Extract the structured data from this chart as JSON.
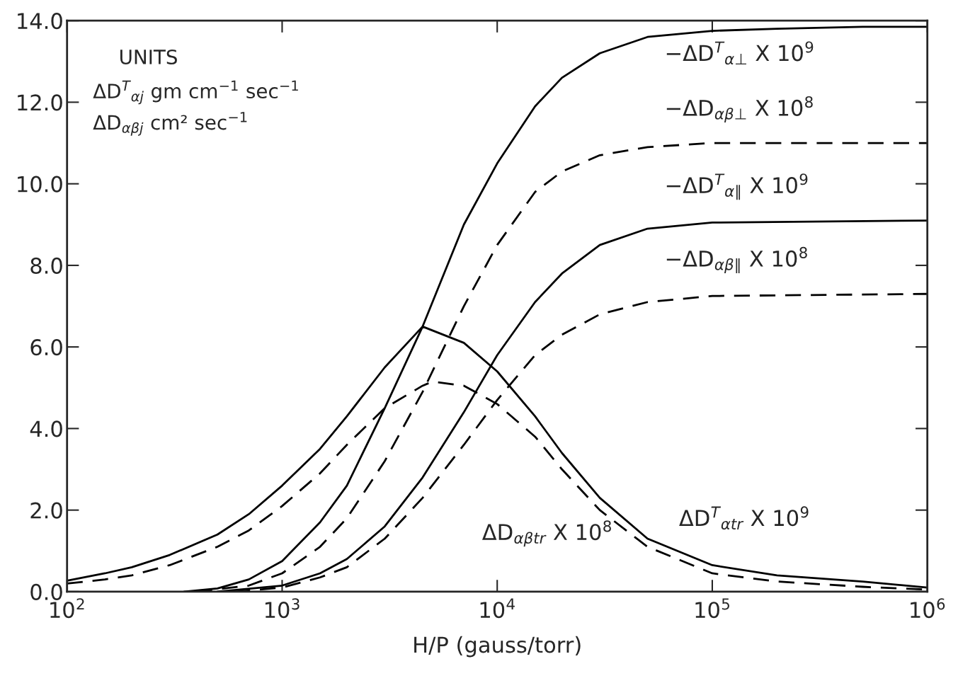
{
  "chart_data": {
    "type": "line",
    "xlabel": "H/P (gauss/torr)",
    "log": "x",
    "grid": false,
    "legend": false,
    "xlim": [
      100,
      1000000
    ],
    "xticks": [
      {
        "value": 100,
        "label": "10$^{2}$"
      },
      {
        "value": 1000,
        "label": "10$^{3}$"
      },
      {
        "value": 10000,
        "label": "10$^{4}$"
      },
      {
        "value": 100000,
        "label": "10$^{5}$"
      },
      {
        "value": 1000000,
        "label": "10$^{6}$"
      }
    ],
    "ylim": [
      0,
      14
    ],
    "yticks": [
      {
        "value": 0,
        "label": "0.0"
      },
      {
        "value": 2,
        "label": "2.0"
      },
      {
        "value": 4,
        "label": "4.0"
      },
      {
        "value": 6,
        "label": "6.0"
      },
      {
        "value": 8,
        "label": "8.0"
      },
      {
        "value": 10,
        "label": "10.0"
      },
      {
        "value": 12,
        "label": "12.0"
      },
      {
        "value": 14,
        "label": "14.0"
      }
    ],
    "annotations": [
      "UNITS",
      "ΔD$^{T}$$_{αj}$ gm cm$^{−1}$ sec$^{−1}$",
      "ΔD$_{αβj}$ cm² sec$^{−1}$"
    ],
    "series": [
      {
        "name": "−ΔD$^{T}$$_{α⊥}$ X 10$^{9}$",
        "color": "#000000",
        "line_style": "solid",
        "x": [
          350,
          500,
          700,
          1000,
          1500,
          2000,
          3000,
          4500,
          7000,
          10000,
          15000,
          20000,
          30000,
          50000,
          100000,
          200000,
          500000,
          1000000
        ],
        "values": [
          0,
          0.08,
          0.3,
          0.75,
          1.7,
          2.6,
          4.5,
          6.5,
          9.0,
          10.5,
          11.9,
          12.6,
          13.2,
          13.6,
          13.75,
          13.8,
          13.85,
          13.85
        ]
      },
      {
        "name": "−ΔD$_{αβ⊥}$ X 10$^{8}$",
        "color": "#000000",
        "line_style": "dashed",
        "x": [
          400,
          700,
          1000,
          1500,
          2000,
          3000,
          4500,
          7000,
          10000,
          15000,
          20000,
          30000,
          50000,
          100000,
          1000000
        ],
        "values": [
          0,
          0.15,
          0.45,
          1.1,
          1.8,
          3.2,
          4.9,
          7.0,
          8.5,
          9.8,
          10.3,
          10.7,
          10.9,
          11.0,
          11.0
        ]
      },
      {
        "name": "−ΔD$^{T}$$_{α∥}$ X 10$^{9}$",
        "color": "#000000",
        "line_style": "solid",
        "x": [
          500,
          1000,
          1500,
          2000,
          3000,
          4500,
          7000,
          10000,
          15000,
          20000,
          30000,
          50000,
          100000,
          1000000
        ],
        "values": [
          0,
          0.15,
          0.45,
          0.8,
          1.6,
          2.8,
          4.4,
          5.8,
          7.1,
          7.8,
          8.5,
          8.9,
          9.05,
          9.1
        ]
      },
      {
        "name": "−ΔD$_{αβ∥}$ X 10$^{8}$",
        "color": "#000000",
        "line_style": "dashed",
        "x": [
          600,
          1000,
          1500,
          2000,
          3000,
          4500,
          7000,
          10000,
          15000,
          20000,
          30000,
          50000,
          100000,
          1000000
        ],
        "values": [
          0,
          0.1,
          0.35,
          0.6,
          1.3,
          2.3,
          3.6,
          4.7,
          5.8,
          6.3,
          6.8,
          7.1,
          7.25,
          7.3
        ]
      },
      {
        "name": "ΔD$^{T}$$_{αtr}$ X 10$^{9}$",
        "color": "#000000",
        "line_style": "solid",
        "x": [
          100,
          150,
          200,
          300,
          500,
          700,
          1000,
          1500,
          2000,
          3000,
          4500,
          7000,
          10000,
          15000,
          20000,
          30000,
          50000,
          100000,
          200000,
          500000,
          1000000
        ],
        "values": [
          0.27,
          0.45,
          0.6,
          0.9,
          1.4,
          1.9,
          2.6,
          3.5,
          4.3,
          5.5,
          6.5,
          6.1,
          5.4,
          4.3,
          3.4,
          2.3,
          1.3,
          0.65,
          0.4,
          0.25,
          0.1
        ]
      },
      {
        "name": "ΔD$_{αβtr}$ X 10$^{8}$",
        "color": "#000000",
        "line_style": "dashed",
        "x": [
          100,
          150,
          200,
          300,
          500,
          700,
          1000,
          1500,
          2000,
          3000,
          4500,
          5000,
          7000,
          10000,
          15000,
          20000,
          30000,
          50000,
          100000,
          200000,
          500000,
          1000000
        ],
        "values": [
          0.2,
          0.3,
          0.4,
          0.65,
          1.1,
          1.5,
          2.1,
          2.9,
          3.6,
          4.5,
          5.05,
          5.15,
          5.05,
          4.6,
          3.8,
          3.0,
          2.0,
          1.1,
          0.45,
          0.25,
          0.12,
          0.05
        ]
      }
    ]
  }
}
